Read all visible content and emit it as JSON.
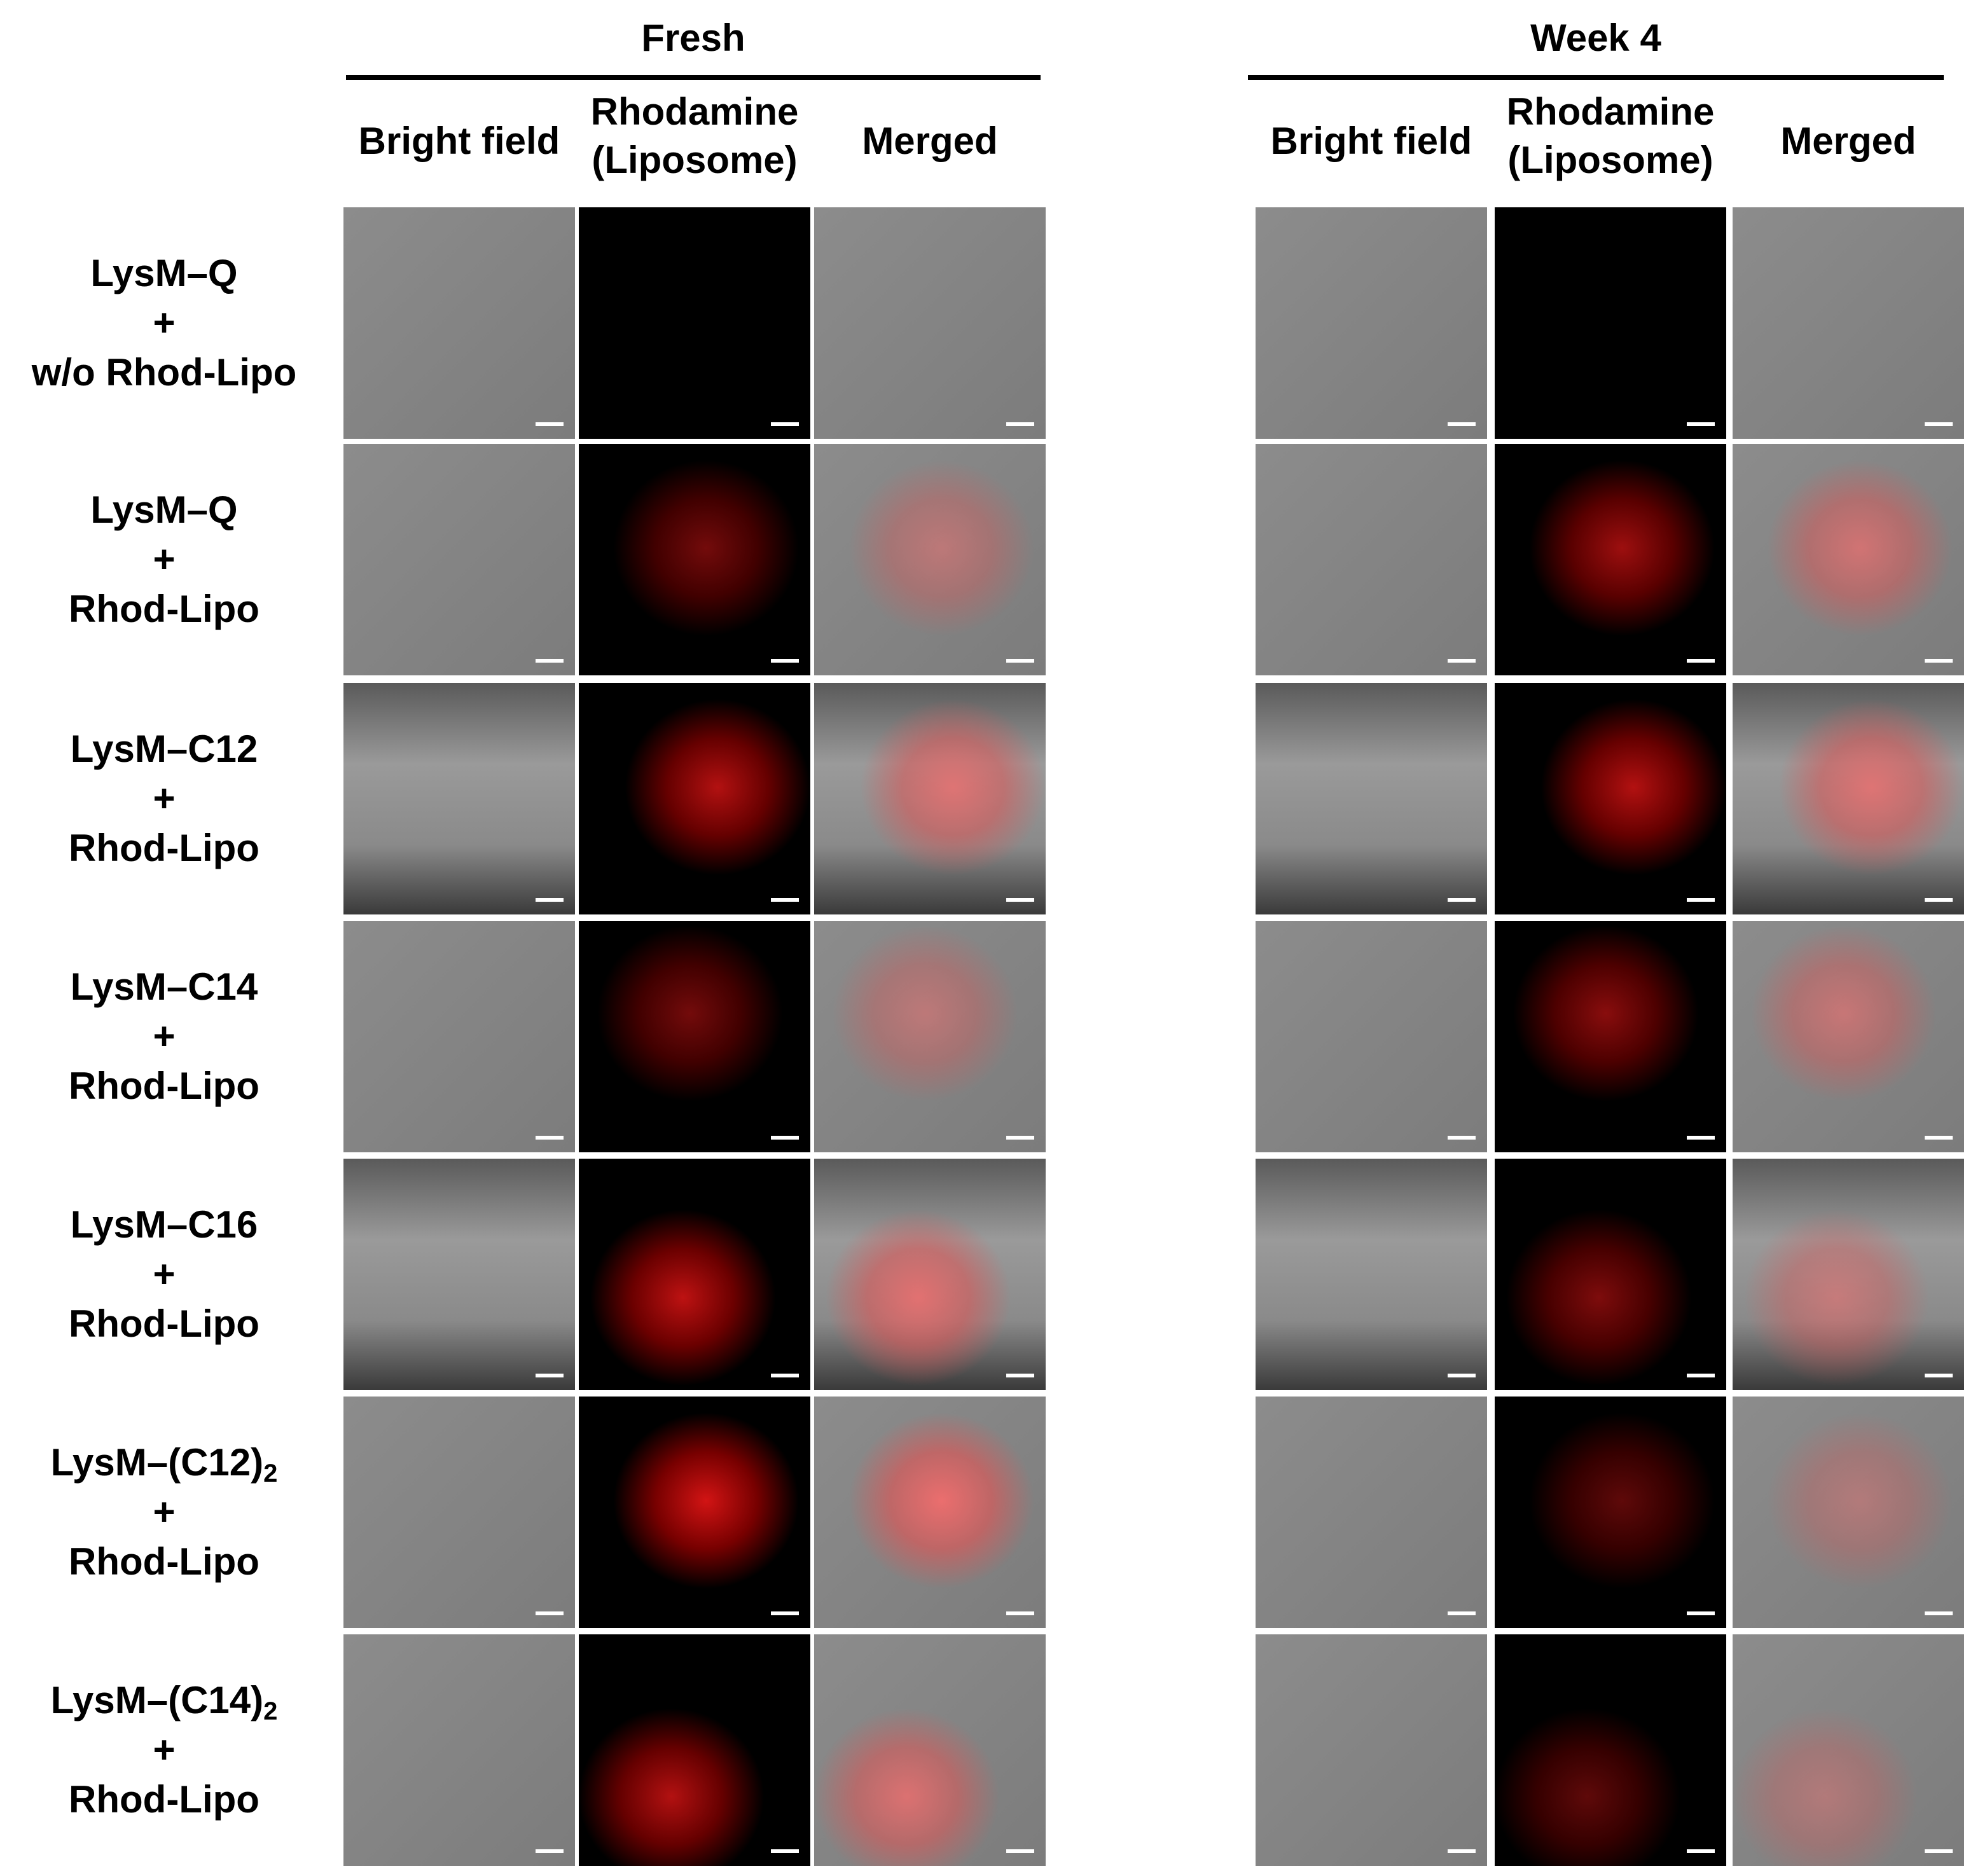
{
  "groups": [
    {
      "title": "Fresh",
      "columns": [
        {
          "lines": [
            "Bright field"
          ]
        },
        {
          "lines": [
            "Rhodamine",
            "(Liposome)"
          ]
        },
        {
          "lines": [
            "Merged"
          ]
        }
      ]
    },
    {
      "title": "Week 4",
      "columns": [
        {
          "lines": [
            "Bright field"
          ]
        },
        {
          "lines": [
            "Rhodamine",
            "(Liposome)"
          ]
        },
        {
          "lines": [
            "Merged"
          ]
        }
      ]
    }
  ],
  "rows": [
    {
      "lines": [
        {
          "text": "LysM–Q"
        },
        {
          "text": "+"
        },
        {
          "text": "w/o Rhod-Lipo"
        }
      ]
    },
    {
      "lines": [
        {
          "text": "LysM–Q"
        },
        {
          "text": "+"
        },
        {
          "text": "Rhod-Lipo"
        }
      ]
    },
    {
      "lines": [
        {
          "text": "LysM–C12"
        },
        {
          "text": "+"
        },
        {
          "text": "Rhod-Lipo"
        }
      ]
    },
    {
      "lines": [
        {
          "text": "LysM–C14"
        },
        {
          "text": "+"
        },
        {
          "text": "Rhod-Lipo"
        }
      ]
    },
    {
      "lines": [
        {
          "text": "LysM–C16"
        },
        {
          "text": "+"
        },
        {
          "text": "Rhod-Lipo"
        }
      ]
    },
    {
      "lines": [
        {
          "text": "LysM–(C12)",
          "sub": "2"
        },
        {
          "text": "+"
        },
        {
          "text": "Rhod-Lipo"
        }
      ]
    },
    {
      "lines": [
        {
          "text": "LysM–(C14)",
          "sub": "2"
        },
        {
          "text": "+"
        },
        {
          "text": "Rhod-Lipo"
        }
      ]
    }
  ]
}
